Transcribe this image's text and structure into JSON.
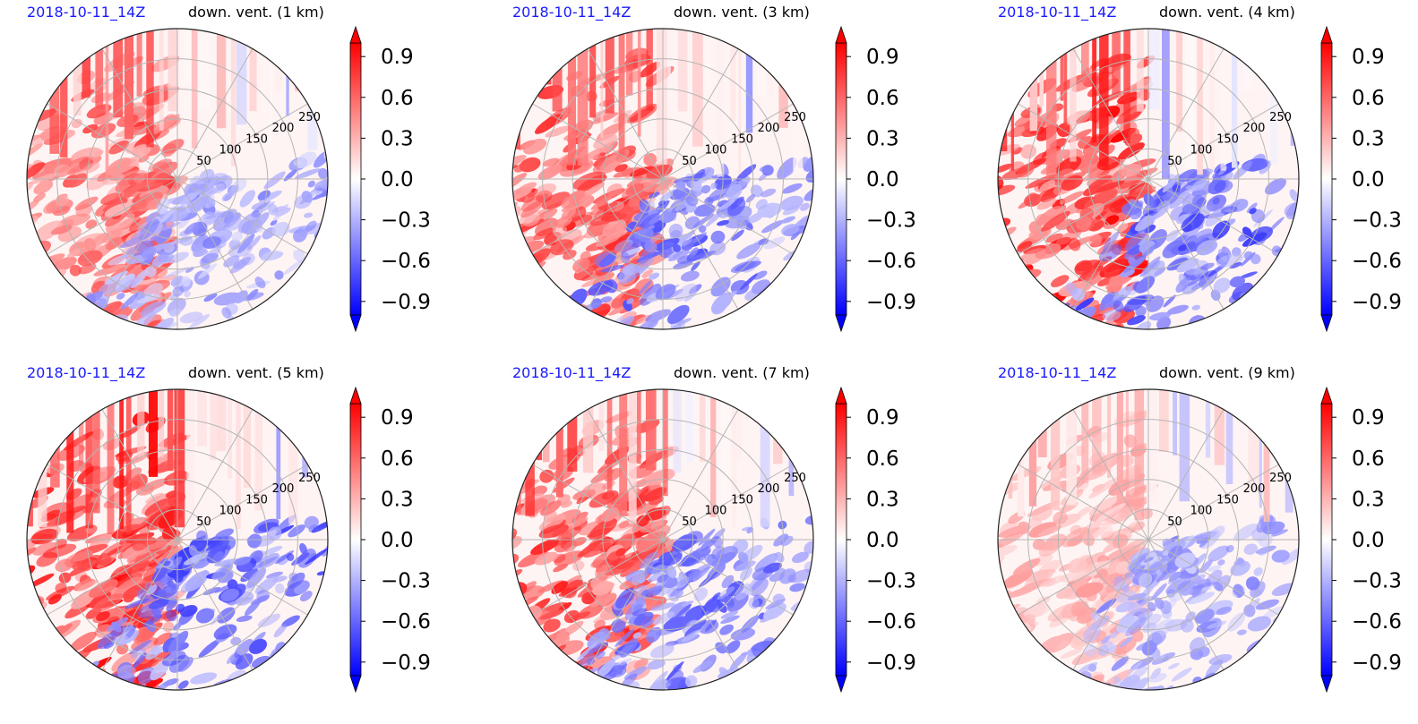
{
  "colors": {
    "positive": "#ff0000",
    "negative": "#0000ff",
    "neutral": "#ffffff",
    "title_date": "#1a1aff",
    "grid": "#b5b5b5"
  },
  "chart_data": [
    {
      "type": "heatmap",
      "projection": "polar",
      "date_label": "2018-10-11_14Z",
      "title": "down. vent. (1 km)",
      "ring_labels": [
        50,
        100,
        150,
        200,
        250
      ],
      "colorbar": {
        "ticks": [
          "0.9",
          "0.6",
          "0.3",
          "0.0",
          "−0.3",
          "−0.6",
          "−0.9"
        ],
        "range": [
          -1.0,
          1.0
        ],
        "extend": "both"
      },
      "field_summary": {
        "west_half": 0.8,
        "east_half": -0.5,
        "north_stripes": true,
        "stripe_seed": 11
      }
    },
    {
      "type": "heatmap",
      "projection": "polar",
      "date_label": "2018-10-11_14Z",
      "title": "down. vent. (3 km)",
      "ring_labels": [
        50,
        100,
        150,
        200,
        250
      ],
      "colorbar": {
        "ticks": [
          "0.9",
          "0.6",
          "0.3",
          "0.0",
          "−0.3",
          "−0.6",
          "−0.9"
        ],
        "range": [
          -1.0,
          1.0
        ],
        "extend": "both"
      },
      "field_summary": {
        "west_half": 0.9,
        "east_half": -0.7,
        "north_stripes": true,
        "stripe_seed": 23
      }
    },
    {
      "type": "heatmap",
      "projection": "polar",
      "date_label": "2018-10-11_14Z",
      "title": "down. vent. (4 km)",
      "ring_labels": [
        50,
        100,
        150,
        200,
        250
      ],
      "colorbar": {
        "ticks": [
          "0.9",
          "0.6",
          "0.3",
          "0.0",
          "−0.3",
          "−0.6",
          "−0.9"
        ],
        "range": [
          -1.0,
          1.0
        ],
        "extend": "both"
      },
      "field_summary": {
        "west_half": 1.0,
        "east_half": -0.8,
        "north_stripes": true,
        "stripe_seed": 37
      }
    },
    {
      "type": "heatmap",
      "projection": "polar",
      "date_label": "2018-10-11_14Z",
      "title": "down. vent. (5 km)",
      "ring_labels": [
        50,
        100,
        150,
        200,
        250
      ],
      "colorbar": {
        "ticks": [
          "0.9",
          "0.6",
          "0.3",
          "0.0",
          "−0.3",
          "−0.6",
          "−0.9"
        ],
        "range": [
          -1.0,
          1.0
        ],
        "extend": "both"
      },
      "field_summary": {
        "west_half": 1.0,
        "east_half": -0.8,
        "north_stripes": true,
        "stripe_seed": 41
      }
    },
    {
      "type": "heatmap",
      "projection": "polar",
      "date_label": "2018-10-11_14Z",
      "title": "down. vent. (7 km)",
      "ring_labels": [
        50,
        100,
        150,
        200,
        250
      ],
      "colorbar": {
        "ticks": [
          "0.9",
          "0.6",
          "0.3",
          "0.0",
          "−0.3",
          "−0.6",
          "−0.9"
        ],
        "range": [
          -1.0,
          1.0
        ],
        "extend": "both"
      },
      "field_summary": {
        "west_half": 0.9,
        "east_half": -0.7,
        "north_stripes": true,
        "stripe_seed": 53
      }
    },
    {
      "type": "heatmap",
      "projection": "polar",
      "date_label": "2018-10-11_14Z",
      "title": "down. vent. (9 km)",
      "ring_labels": [
        50,
        100,
        150,
        200,
        250
      ],
      "colorbar": {
        "ticks": [
          "0.9",
          "0.6",
          "0.3",
          "0.0",
          "−0.3",
          "−0.6",
          "−0.9"
        ],
        "range": [
          -1.0,
          1.0
        ],
        "extend": "both"
      },
      "field_summary": {
        "west_half": 0.4,
        "east_half": -0.5,
        "north_stripes": true,
        "stripe_seed": 67
      }
    }
  ]
}
